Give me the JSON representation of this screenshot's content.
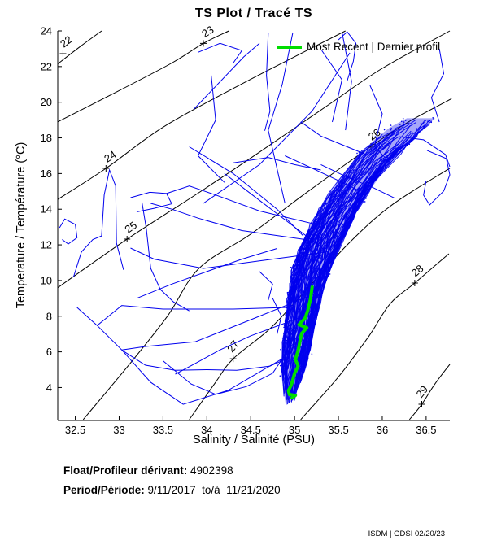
{
  "title": "TS Plot / Tracé TS",
  "legend": {
    "label": "Most Recent | Dernier profil"
  },
  "footer": {
    "float_label": "Float/Profileur dérivant:",
    "float_value": " 4902398",
    "period_label": "Period/Période:",
    "period_value": " 9/11/2017  to/à  11/21/2020",
    "credit": "ISDM | GDSI 02/20/23"
  },
  "colors": {
    "profiles": "#0000EE",
    "most_recent": "#00DD00",
    "contour": "#000000",
    "axis": "#000000",
    "text": "#000000"
  },
  "chart_data": {
    "type": "line",
    "title": "TS Plot / Tracé TS",
    "xlabel": "Salinity / Salinité (PSU)",
    "ylabel": "Temperature / Température (°C)",
    "xlim": [
      32.3,
      36.77
    ],
    "ylim": [
      2.15,
      24
    ],
    "grid": false,
    "legend_position": "top-right-inside",
    "xtick_values": [
      32.5,
      33,
      33.5,
      34,
      34.5,
      35,
      35.5,
      36,
      36.5
    ],
    "xtick_labels": [
      "32.5",
      "33",
      "33.5",
      "34",
      "34.5",
      "35",
      "35.5",
      "36",
      "36.5"
    ],
    "ytick_values": [
      4,
      6,
      8,
      10,
      12,
      14,
      16,
      18,
      20,
      22,
      24
    ],
    "ytick_labels": [
      "4",
      "6",
      "8",
      "10",
      "12",
      "14",
      "16",
      "18",
      "20",
      "22",
      "24"
    ],
    "contours": [
      {
        "level": "22",
        "label_at": [
          32.36,
          22.72
        ],
        "points": [
          [
            32.3,
            22.15
          ],
          [
            32.55,
            23.1
          ],
          [
            32.8,
            24.0
          ]
        ]
      },
      {
        "level": "23",
        "label_at": [
          33.96,
          23.3
        ],
        "points": [
          [
            32.3,
            18.9
          ],
          [
            32.9,
            20.4
          ],
          [
            33.6,
            22.2
          ],
          [
            33.96,
            23.3
          ],
          [
            34.25,
            24.0
          ]
        ]
      },
      {
        "level": "24",
        "label_at": [
          32.85,
          16.29
        ],
        "points": [
          [
            32.3,
            14.55
          ],
          [
            32.85,
            16.29
          ],
          [
            33.5,
            18.6
          ],
          [
            34.33,
            20.85
          ],
          [
            35.0,
            22.55
          ],
          [
            35.58,
            24.0
          ]
        ]
      },
      {
        "level": "25",
        "label_at": [
          33.09,
          12.32
        ],
        "points": [
          [
            32.3,
            9.6
          ],
          [
            33.09,
            12.32
          ],
          [
            33.9,
            14.9
          ],
          [
            34.6,
            17.2
          ],
          [
            35.4,
            19.9
          ],
          [
            36.0,
            21.9
          ],
          [
            36.77,
            24.0
          ]
        ]
      },
      {
        "level": "26",
        "label_at": [
          35.87,
          17.52
        ],
        "points": [
          [
            32.59,
            2.2
          ],
          [
            33.1,
            5.2
          ],
          [
            33.55,
            8.0
          ],
          [
            33.91,
            10.68
          ],
          [
            34.5,
            12.6
          ],
          [
            35.1,
            14.8
          ],
          [
            35.87,
            17.52
          ],
          [
            36.3,
            18.9
          ],
          [
            36.79,
            20.2
          ]
        ]
      },
      {
        "level": "27",
        "label_at": [
          34.3,
          5.61
        ],
        "points": [
          [
            33.8,
            2.2
          ],
          [
            34.1,
            4.3
          ],
          [
            34.3,
            5.61
          ],
          [
            34.72,
            7.3
          ],
          [
            35.1,
            9.3
          ],
          [
            35.6,
            12.0
          ],
          [
            36.1,
            14.2
          ],
          [
            36.77,
            16.3
          ]
        ]
      },
      {
        "level": "28",
        "label_at": [
          36.37,
          9.86
        ],
        "points": [
          [
            35.07,
            2.2
          ],
          [
            35.5,
            4.6
          ],
          [
            35.85,
            6.9
          ],
          [
            36.09,
            8.7
          ],
          [
            36.37,
            9.86
          ],
          [
            36.76,
            11.5
          ]
        ]
      },
      {
        "level": "29",
        "label_at": [
          36.45,
          3.06
        ],
        "points": [
          [
            36.31,
            2.2
          ],
          [
            36.45,
            3.06
          ],
          [
            36.6,
            4.2
          ],
          [
            36.77,
            5.3
          ]
        ]
      }
    ],
    "profiles": [
      [
        [
          34.89,
          5.7
        ],
        [
          34.24,
          3.84
        ],
        [
          33.73,
          3.06
        ],
        [
          33.36,
          4.29
        ],
        [
          33.03,
          6.11
        ],
        [
          32.75,
          7.48
        ],
        [
          32.52,
          8.49
        ]
      ],
      [
        [
          32.48,
          10.2
        ],
        [
          32.57,
          11.6
        ],
        [
          32.7,
          12.3
        ],
        [
          32.8,
          12.5
        ],
        [
          32.83,
          14.8
        ],
        [
          32.89,
          16.2
        ],
        [
          32.96,
          15.3
        ],
        [
          32.97,
          12.1
        ],
        [
          33.05,
          10.6
        ]
      ],
      [
        [
          33.03,
          6.1
        ],
        [
          33.3,
          5.25
        ],
        [
          33.64,
          4.97
        ],
        [
          34.0,
          5.0
        ],
        [
          34.34,
          4.97
        ],
        [
          34.72,
          5.2
        ],
        [
          34.9,
          5.6
        ]
      ],
      [
        [
          33.5,
          5.5
        ],
        [
          33.82,
          4.2
        ],
        [
          34.1,
          3.62
        ],
        [
          34.45,
          4.05
        ],
        [
          34.75,
          4.8
        ],
        [
          34.9,
          5.9
        ]
      ],
      [
        [
          32.32,
          12.96
        ],
        [
          32.38,
          13.45
        ],
        [
          32.5,
          13.15
        ],
        [
          32.52,
          12.4
        ],
        [
          32.42,
          12.05
        ],
        [
          32.35,
          12.3
        ]
      ],
      [
        [
          33.13,
          14.65
        ],
        [
          33.35,
          14.95
        ],
        [
          33.54,
          14.88
        ],
        [
          33.6,
          14.3
        ],
        [
          33.4,
          14.05
        ],
        [
          33.2,
          13.85
        ]
      ],
      [
        [
          33.26,
          14.4
        ],
        [
          33.31,
          12.9
        ],
        [
          33.36,
          10.68
        ],
        [
          33.47,
          9.5
        ],
        [
          33.62,
          8.8
        ],
        [
          33.8,
          8.3
        ]
      ],
      [
        [
          35.0,
          8.5
        ],
        [
          34.3,
          8.4
        ],
        [
          33.5,
          8.4
        ],
        [
          33.03,
          8.6
        ],
        [
          32.75,
          7.48
        ]
      ],
      [
        [
          35.26,
          9.31
        ],
        [
          34.5,
          7.8
        ],
        [
          33.87,
          6.57
        ],
        [
          33.3,
          6.3
        ],
        [
          33.03,
          6.11
        ]
      ],
      [
        [
          35.35,
          11.59
        ],
        [
          34.6,
          11.1
        ],
        [
          33.96,
          10.68
        ],
        [
          33.4,
          11.2
        ],
        [
          33.13,
          11.82
        ]
      ],
      [
        [
          35.07,
          7.94
        ],
        [
          34.5,
          6.9
        ],
        [
          34.15,
          6.11
        ],
        [
          33.85,
          5.3
        ],
        [
          33.64,
          4.75
        ]
      ],
      [
        [
          35.12,
          12.3
        ],
        [
          34.4,
          12.8
        ],
        [
          33.9,
          13.5
        ],
        [
          33.6,
          14.0
        ],
        [
          33.36,
          14.33
        ]
      ],
      [
        [
          35.2,
          13.2
        ],
        [
          34.6,
          13.9
        ],
        [
          34.1,
          14.8
        ],
        [
          33.8,
          15.3
        ],
        [
          33.54,
          14.88
        ]
      ],
      [
        [
          33.96,
          14.33
        ],
        [
          34.6,
          16.5
        ],
        [
          35.2,
          19.5
        ],
        [
          35.63,
          22.77
        ]
      ],
      [
        [
          33.85,
          19.6
        ],
        [
          34.42,
          22.54
        ],
        [
          34.6,
          23.3
        ]
      ],
      [
        [
          34.98,
          23.91
        ],
        [
          34.86,
          21.0
        ],
        [
          34.7,
          18.43
        ],
        [
          34.89,
          14.33
        ]
      ],
      [
        [
          35.54,
          23.95
        ],
        [
          35.65,
          21.17
        ],
        [
          35.58,
          18.43
        ]
      ],
      [
        [
          35.31,
          22.9
        ],
        [
          35.54,
          21.26
        ],
        [
          35.43,
          18.89
        ]
      ],
      [
        [
          34.2,
          16.0
        ],
        [
          34.6,
          14.5
        ],
        [
          35.0,
          13.0
        ],
        [
          35.4,
          11.5
        ]
      ],
      [
        [
          33.8,
          17.5
        ],
        [
          34.3,
          16.0
        ],
        [
          34.8,
          14.0
        ],
        [
          35.1,
          12.5
        ]
      ],
      [
        [
          34.05,
          21.5
        ],
        [
          34.1,
          19.0
        ],
        [
          33.9,
          17.0
        ],
        [
          34.2,
          15.5
        ]
      ],
      [
        [
          34.7,
          23.9
        ],
        [
          34.68,
          21.5
        ],
        [
          34.72,
          19.5
        ],
        [
          34.66,
          18.4
        ]
      ],
      [
        [
          35.86,
          17.07
        ],
        [
          36.19,
          18.07
        ],
        [
          36.47,
          17.89
        ],
        [
          36.72,
          17.07
        ],
        [
          36.77,
          16.38
        ]
      ],
      [
        [
          36.65,
          23.0
        ],
        [
          36.7,
          21.6
        ],
        [
          36.56,
          20.26
        ],
        [
          36.65,
          18.89
        ]
      ],
      [
        [
          36.51,
          17.3
        ],
        [
          36.73,
          16.84
        ],
        [
          36.77,
          15.93
        ],
        [
          36.7,
          15.02
        ],
        [
          36.54,
          14.24
        ],
        [
          36.47,
          14.79
        ],
        [
          36.5,
          15.6
        ]
      ],
      [
        [
          35.86,
          20.94
        ],
        [
          36.0,
          19.35
        ],
        [
          35.91,
          17.52
        ],
        [
          36.05,
          16.8
        ]
      ],
      [
        [
          35.3,
          16.5
        ],
        [
          35.6,
          15.8
        ],
        [
          35.9,
          15.2
        ],
        [
          36.15,
          14.6
        ]
      ],
      [
        [
          35.07,
          18.9
        ],
        [
          35.3,
          18.1
        ],
        [
          35.6,
          17.5
        ],
        [
          35.85,
          17.0
        ]
      ],
      [
        [
          34.89,
          17.0
        ],
        [
          35.2,
          16.3
        ],
        [
          35.5,
          15.6
        ],
        [
          35.75,
          15.0
        ]
      ],
      [
        [
          34.3,
          16.6
        ],
        [
          34.7,
          16.9
        ],
        [
          35.0,
          16.5
        ],
        [
          35.3,
          16.2
        ]
      ],
      [
        [
          33.9,
          22.8
        ],
        [
          34.15,
          23.3
        ],
        [
          34.4,
          22.9
        ],
        [
          34.3,
          22.2
        ]
      ],
      [
        [
          35.6,
          21.2
        ],
        [
          35.67,
          22.3
        ],
        [
          35.7,
          23.3
        ],
        [
          35.6,
          23.95
        ],
        [
          35.5,
          23.5
        ]
      ],
      [
        [
          34.75,
          9.0
        ],
        [
          34.85,
          8.0
        ],
        [
          34.8,
          7.0
        ]
      ],
      [
        [
          34.6,
          10.5
        ],
        [
          34.75,
          9.8
        ],
        [
          34.7,
          8.9
        ]
      ],
      [
        [
          33.2,
          9.0
        ],
        [
          33.6,
          9.8
        ],
        [
          34.0,
          10.5
        ],
        [
          34.4,
          11.2
        ],
        [
          34.8,
          11.8
        ]
      ]
    ],
    "dense_band": {
      "left_edge": [
        [
          34.9,
          3.0
        ],
        [
          34.84,
          5.0
        ],
        [
          34.87,
          6.6
        ],
        [
          34.89,
          7.5
        ],
        [
          34.93,
          9.3
        ],
        [
          34.98,
          10.7
        ],
        [
          35.07,
          12.0
        ],
        [
          35.21,
          13.4
        ],
        [
          35.35,
          14.5
        ],
        [
          35.54,
          15.9
        ],
        [
          35.72,
          17.0
        ],
        [
          35.91,
          17.9
        ],
        [
          36.09,
          18.6
        ],
        [
          36.28,
          19.1
        ]
      ],
      "right_edge": [
        [
          34.99,
          3.3
        ],
        [
          35.08,
          4.6
        ],
        [
          35.17,
          5.9
        ],
        [
          35.24,
          7.7
        ],
        [
          35.31,
          9.3
        ],
        [
          35.4,
          10.7
        ],
        [
          35.52,
          12.0
        ],
        [
          35.65,
          13.4
        ],
        [
          35.82,
          14.8
        ],
        [
          35.98,
          15.9
        ],
        [
          36.19,
          17.1
        ],
        [
          36.37,
          18.0
        ],
        [
          36.51,
          18.7
        ],
        [
          36.6,
          19.1
        ]
      ],
      "strand_count": 80,
      "edge_strand_count": 20,
      "fuzz_strand_count": 12,
      "speckle_count": 150
    },
    "most_recent": [
      [
        35.2,
        9.63
      ],
      [
        35.18,
        8.94
      ],
      [
        35.15,
        8.31
      ],
      [
        35.12,
        7.89
      ],
      [
        35.05,
        7.53
      ],
      [
        35.14,
        7.35
      ],
      [
        35.08,
        7.03
      ],
      [
        35.06,
        6.57
      ],
      [
        35.04,
        6.07
      ],
      [
        35.01,
        5.57
      ],
      [
        35.04,
        5.2
      ],
      [
        35.0,
        4.79
      ],
      [
        34.98,
        4.43
      ],
      [
        34.96,
        4.11
      ],
      [
        34.93,
        3.83
      ],
      [
        34.94,
        3.61
      ],
      [
        35.01,
        3.56
      ],
      [
        34.97,
        3.42
      ]
    ]
  }
}
